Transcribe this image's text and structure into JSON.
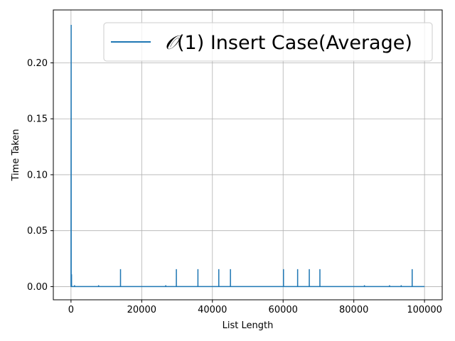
{
  "chart_data": {
    "type": "line",
    "xlabel": "List Length",
    "ylabel": "Time Taken",
    "xlim": [
      -5000,
      105000
    ],
    "ylim": [
      -0.0118,
      0.2473
    ],
    "xticks": [
      0,
      20000,
      40000,
      60000,
      80000,
      100000
    ],
    "xtick_labels": [
      "0",
      "20000",
      "40000",
      "60000",
      "80000",
      "100000"
    ],
    "yticks": [
      0.0,
      0.05,
      0.1,
      0.15,
      0.2
    ],
    "ytick_labels": [
      "0.00",
      "0.05",
      "0.10",
      "0.15",
      "0.20"
    ],
    "grid": true,
    "legend": {
      "position": "top-right",
      "math": "𝒪",
      "text": "(1) Insert Case(Average)"
    },
    "series": [
      {
        "name": "𝒪(1) Insert Case(Average)",
        "color": "#1f77b4",
        "x": [
          0,
          50,
          60,
          120,
          150,
          160,
          1000,
          1005,
          1010,
          7800,
          7805,
          7810,
          14000,
          14005,
          14010,
          26800,
          26805,
          26810,
          29800,
          29805,
          29810,
          35900,
          35905,
          35910,
          41800,
          41805,
          41810,
          45100,
          45105,
          45110,
          60100,
          60105,
          60110,
          64100,
          64105,
          64110,
          67400,
          67405,
          67410,
          70400,
          70405,
          70410,
          83000,
          83005,
          83010,
          90100,
          90105,
          90110,
          93400,
          93405,
          93410,
          96500,
          96505,
          96510,
          100000
        ],
        "y": [
          0.0,
          0.234,
          0.0,
          0.0,
          0.011,
          0.0,
          0.0,
          0.0012,
          0.0,
          0.0,
          0.0012,
          0.0,
          0.0,
          0.0156,
          0.0,
          0.0,
          0.0012,
          0.0,
          0.0,
          0.0156,
          0.0,
          0.0,
          0.0156,
          0.0,
          0.0,
          0.0156,
          0.0,
          0.0,
          0.0156,
          0.0,
          0.0,
          0.0156,
          0.0,
          0.0,
          0.0156,
          0.0,
          0.0,
          0.0156,
          0.0,
          0.0,
          0.0156,
          0.0,
          0.0,
          0.0012,
          0.0,
          0.0,
          0.0012,
          0.0,
          0.0,
          0.0012,
          0.0,
          0.0,
          0.0156,
          0.0,
          0.0
        ]
      }
    ]
  }
}
